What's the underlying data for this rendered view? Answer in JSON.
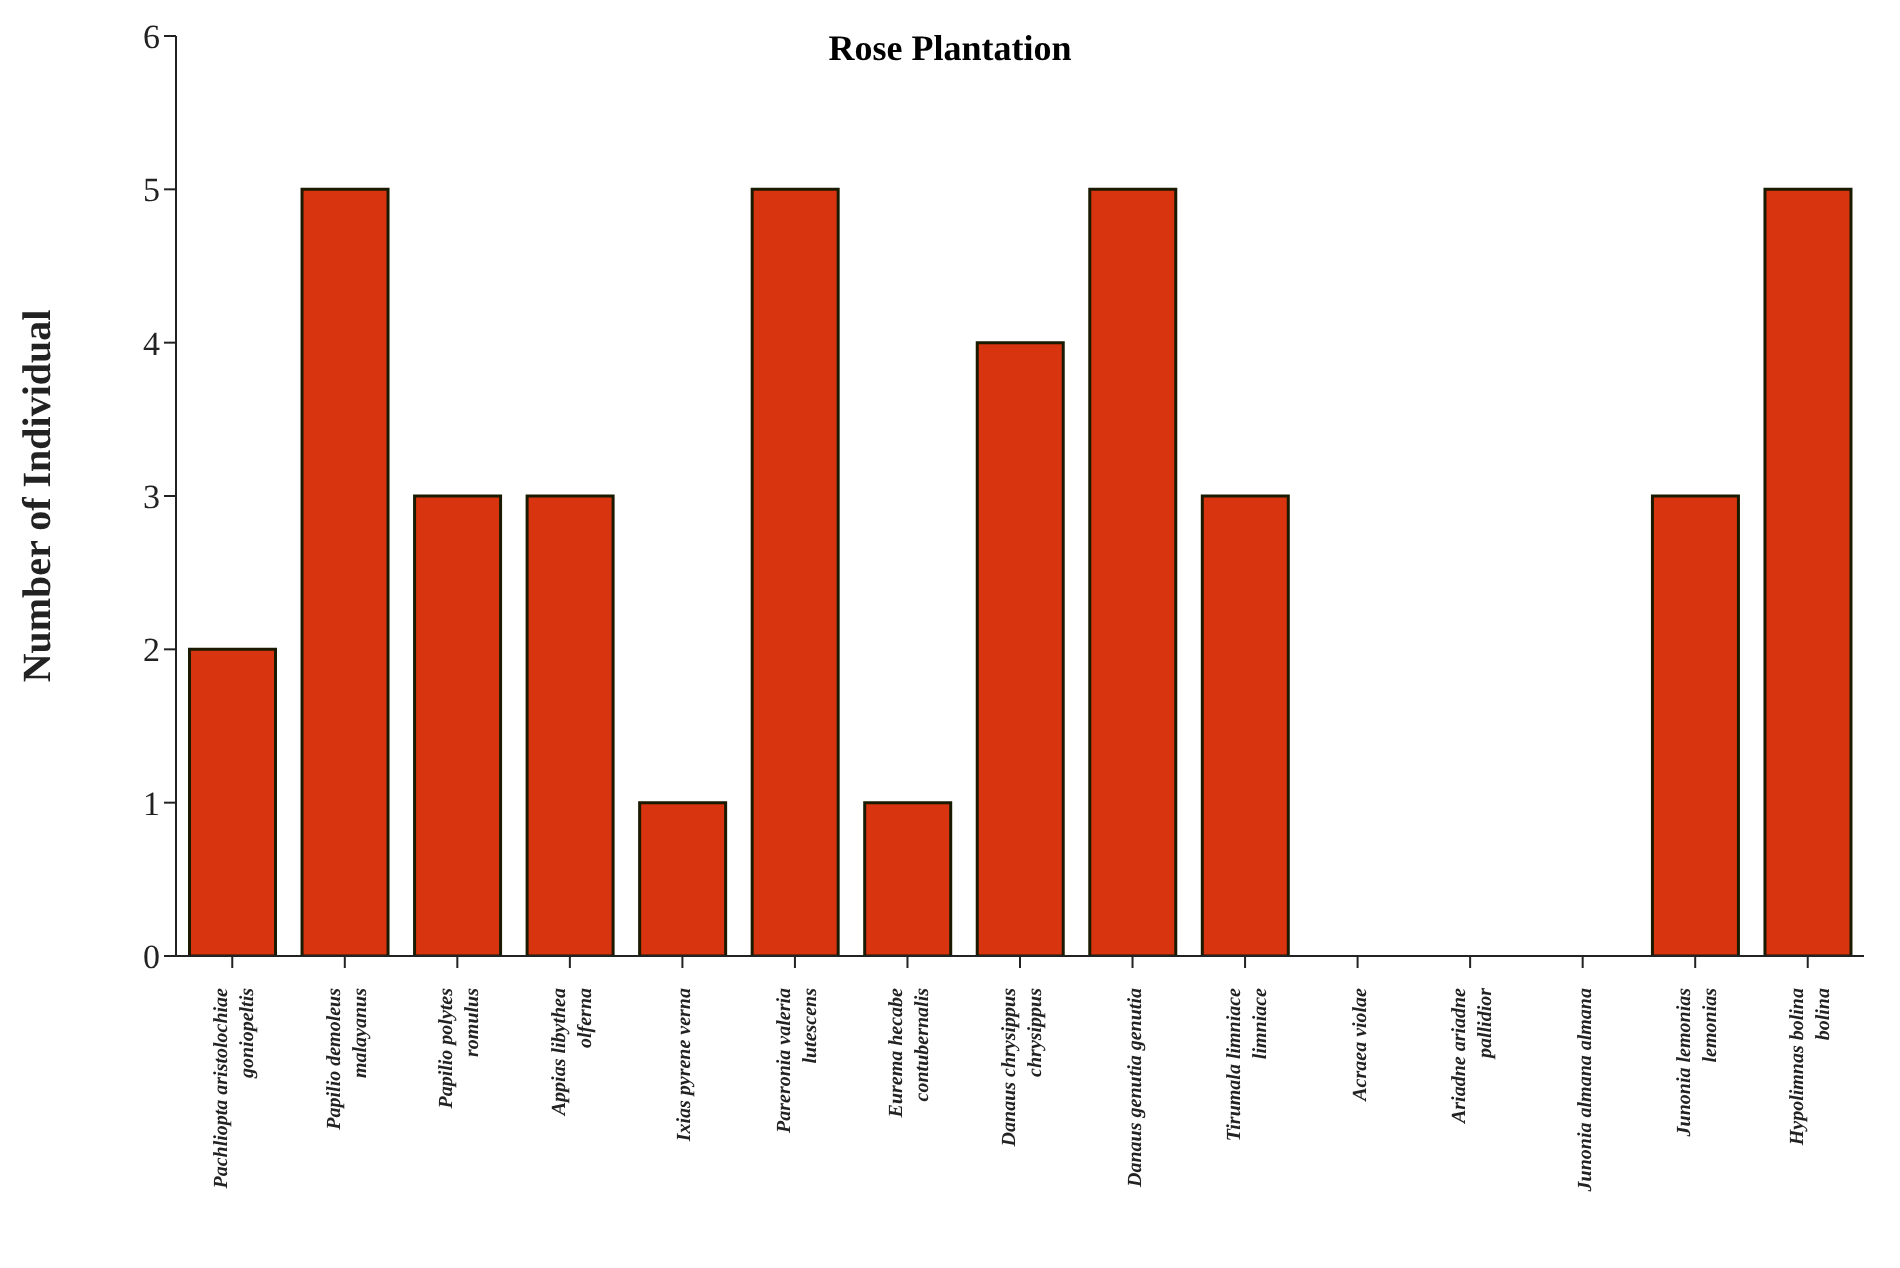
{
  "chart_data": {
    "type": "bar",
    "title": "Rose Plantation",
    "ylabel": "Number of Individual",
    "categories": [
      "Pachliopta aristolochiae goniopeltis",
      "Papilio demoleus malayanus",
      "Papilio polytes romulus",
      "Appias libythea olferna",
      "Ixias pyrene verna",
      "Pareronia valeria lutescens",
      "Eurema hecabe contubernalis",
      "Danaus chrysippus chrysippus",
      "Danaus genutia genutia",
      "Tirumala limniace limniace",
      "Acraea violae",
      "Ariadne ariadne pallidior",
      "Junonia almana almana",
      "Junonia lemonias lemonias",
      "Hypolimnas bolina bolina"
    ],
    "values": [
      2,
      5,
      3,
      3,
      1,
      5,
      1,
      4,
      5,
      3,
      0,
      0,
      0,
      3,
      5
    ],
    "color": "#d8340f",
    "ylim": [
      0,
      6
    ],
    "yticks": [
      0,
      1,
      2,
      3,
      4,
      5,
      6
    ],
    "grid": false,
    "legend": false
  }
}
